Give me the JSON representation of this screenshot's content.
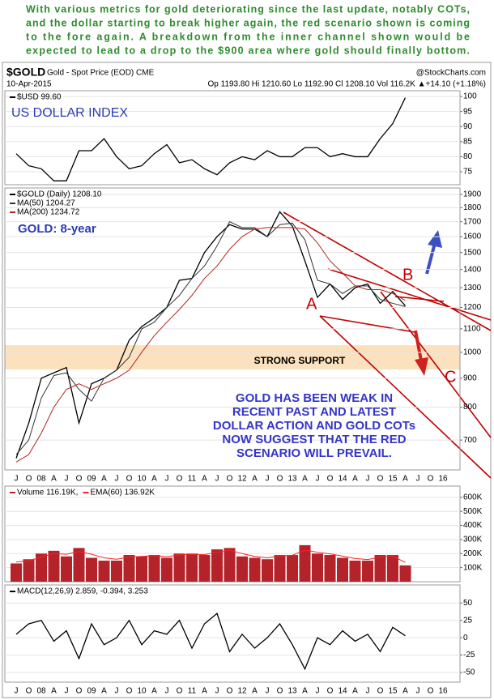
{
  "intro": [
    "With various metrics for gold deteriorating since the last update, notably COTs,",
    "and the dollar starting to break higher again, the red scenario shown is coming",
    "to the fore again. A breakdown from the inner channel shown would be",
    "expected to lead to a drop to the $900 area where gold should finally bottom."
  ],
  "header": {
    "symbol": "$GOLD",
    "title": "Gold - Spot Price (EOD) CME",
    "source": "@StockCharts.com",
    "date": "10-Apr-2015",
    "quote": "Op 1193.80   Hi 1210.60   Lo 1192.90   Cl 1208.10   Vol 116.2K   ▲+14.10 (+1.18%)"
  },
  "chart_data": [
    {
      "type": "line",
      "title": "US DOLLAR INDEX",
      "grid": true,
      "ylim": [
        70.7,
        101.9
      ],
      "yticks": [
        75,
        80,
        85,
        90,
        95,
        100
      ],
      "series": [
        {
          "name": "$USD 99.60",
          "color": "#000000",
          "values": [
            81,
            77,
            76,
            72,
            72,
            82,
            82,
            86,
            80,
            76,
            77,
            81,
            84,
            78,
            79,
            76,
            74,
            78,
            80,
            79,
            82,
            80,
            80,
            83,
            83,
            80,
            81,
            80,
            80,
            86,
            91,
            99.6,
            null,
            null,
            null
          ]
        }
      ]
    },
    {
      "type": "line",
      "title": "GOLD: 8-year",
      "log_scale": true,
      "grid": true,
      "ylim": [
        620,
        1950
      ],
      "yticks": [
        700,
        800,
        900,
        1000,
        1100,
        1200,
        1300,
        1400,
        1500,
        1600,
        1700,
        1800,
        1900
      ],
      "categories": [
        "J",
        "O",
        "08",
        "A",
        "J",
        "O",
        "09",
        "A",
        "J",
        "O",
        "10",
        "A",
        "J",
        "O",
        "11",
        "A",
        "J",
        "O",
        "12",
        "A",
        "J",
        "O",
        "13",
        "A",
        "J",
        "O",
        "14",
        "A",
        "J",
        "O",
        "15",
        "A",
        "J",
        "O",
        "16"
      ],
      "series": [
        {
          "name": "$GOLD (Daily) 1208.10",
          "color": "#000000",
          "values": [
            650,
            750,
            900,
            920,
            940,
            750,
            880,
            900,
            930,
            1050,
            1110,
            1150,
            1200,
            1340,
            1350,
            1500,
            1600,
            1680,
            1650,
            1650,
            1600,
            1770,
            1670,
            1450,
            1250,
            1320,
            1240,
            1300,
            1320,
            1220,
            1280,
            1208.1,
            null,
            null,
            null
          ]
        },
        {
          "name": "MA(50) 1204.27",
          "color": "#333333",
          "values": [
            660,
            700,
            830,
            910,
            920,
            860,
            820,
            900,
            930,
            980,
            1100,
            1130,
            1200,
            1260,
            1350,
            1420,
            1540,
            1700,
            1660,
            1660,
            1600,
            1680,
            1690,
            1580,
            1340,
            1320,
            1270,
            1310,
            1310,
            1240,
            1220,
            1204.27,
            null,
            null,
            null
          ]
        },
        {
          "name": "MA(200) 1234.72",
          "color": "#b22222",
          "values": [
            640,
            660,
            720,
            800,
            860,
            880,
            860,
            880,
            900,
            930,
            1000,
            1070,
            1130,
            1190,
            1260,
            1350,
            1420,
            1520,
            1600,
            1650,
            1660,
            1660,
            1660,
            1650,
            1560,
            1450,
            1380,
            1310,
            1290,
            1290,
            1270,
            1234.72,
            null,
            null,
            null
          ]
        }
      ],
      "annotations": [
        "A",
        "B",
        "C",
        "STRONG SUPPORT"
      ],
      "notes": [
        "GOLD HAS BEEN WEAK IN",
        "RECENT PAST AND LATEST",
        "DOLLAR ACTION AND GOLD COTs",
        "NOW SUGGEST THAT THE RED",
        "SCENARIO WILL PREVAIL."
      ]
    },
    {
      "type": "bar",
      "grid": true,
      "ylim": [
        0,
        680000
      ],
      "yticks": [
        {
          "value": 100000,
          "label": "100K"
        },
        {
          "value": 200000,
          "label": "200K"
        },
        {
          "value": 300000,
          "label": "300K"
        },
        {
          "value": 400000,
          "label": "400K"
        },
        {
          "value": 500000,
          "label": "500K"
        },
        {
          "value": 600000,
          "label": "600K"
        }
      ],
      "series": [
        {
          "name": "Volume 116.19K,",
          "style": "bar",
          "color": "#b5232a",
          "values": [
            130000,
            160000,
            200000,
            220000,
            180000,
            240000,
            170000,
            150000,
            150000,
            190000,
            180000,
            190000,
            170000,
            200000,
            200000,
            190000,
            230000,
            240000,
            180000,
            170000,
            160000,
            190000,
            190000,
            260000,
            200000,
            190000,
            170000,
            150000,
            150000,
            190000,
            190000,
            116190,
            null,
            null,
            null
          ]
        },
        {
          "name": "EMA(60) 136.92K",
          "style": "line",
          "color": "#ff2020",
          "values": [
            140000,
            150000,
            175000,
            200000,
            195000,
            215000,
            195000,
            170000,
            160000,
            175000,
            180000,
            185000,
            178000,
            190000,
            195000,
            192000,
            210000,
            225000,
            200000,
            180000,
            170000,
            182000,
            188000,
            225000,
            210000,
            198000,
            182000,
            165000,
            158000,
            175000,
            182000,
            136920,
            null,
            null,
            null
          ]
        }
      ]
    },
    {
      "type": "line",
      "grid": true,
      "ylim": [
        -64,
        76
      ],
      "yticks": [
        -50,
        -25,
        0,
        25,
        50
      ],
      "categories": [
        "J",
        "O",
        "08",
        "A",
        "J",
        "O",
        "09",
        "A",
        "J",
        "O",
        "10",
        "A",
        "J",
        "O",
        "11",
        "A",
        "J",
        "O",
        "12",
        "A",
        "J",
        "O",
        "13",
        "A",
        "J",
        "O",
        "14",
        "A",
        "J",
        "O",
        "15",
        "A",
        "J",
        "O",
        "16"
      ],
      "series": [
        {
          "name": "MACD(12,26,9) 2.859, -0.394, 3.253",
          "color": "#000000",
          "values": [
            5,
            20,
            25,
            -5,
            10,
            -30,
            20,
            -10,
            0,
            25,
            -10,
            10,
            5,
            25,
            -15,
            20,
            35,
            -20,
            5,
            -15,
            0,
            20,
            -10,
            -45,
            0,
            -10,
            10,
            -5,
            5,
            -20,
            15,
            2.859,
            null,
            null,
            null
          ]
        }
      ]
    }
  ]
}
